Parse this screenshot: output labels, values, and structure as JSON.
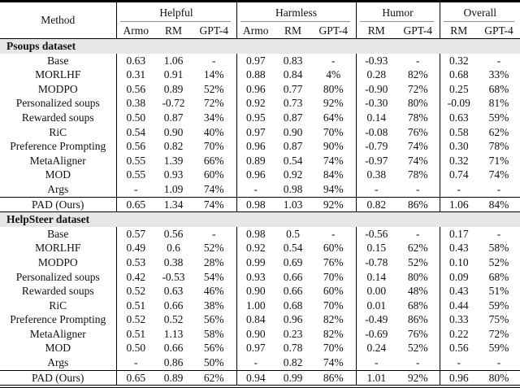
{
  "colors": {
    "band_bg": "#e7e7e7",
    "rule_black": "#000000",
    "cmidrule_gray": "#8f8f8f"
  },
  "table": {
    "method_header": "Method",
    "groups": [
      {
        "label": "Helpful",
        "sub": [
          "Armo",
          "RM",
          "GPT-4"
        ]
      },
      {
        "label": "Harmless",
        "sub": [
          "Armo",
          "RM",
          "GPT-4"
        ]
      },
      {
        "label": "Humor",
        "sub": [
          "RM",
          "GPT-4"
        ]
      },
      {
        "label": "Overall",
        "sub": [
          "RM",
          "GPT-4"
        ]
      }
    ],
    "sections": [
      {
        "title": "Psoups dataset",
        "rows": [
          {
            "method": "Base",
            "values": [
              "0.63",
              "1.06",
              "-",
              "0.97",
              "0.83",
              "-",
              "-0.93",
              "-",
              "0.32",
              "-"
            ],
            "bold": [
              false,
              false,
              false,
              false,
              false,
              false,
              false,
              false,
              false,
              false
            ]
          },
          {
            "method": "MORLHF",
            "values": [
              "0.31",
              "0.91",
              "14%",
              "0.88",
              "0.84",
              "4%",
              "0.28",
              "82%",
              "0.68",
              "33%"
            ],
            "bold": [
              false,
              false,
              false,
              false,
              false,
              false,
              false,
              false,
              false,
              false
            ]
          },
          {
            "method": "MODPO",
            "values": [
              "0.56",
              "0.89",
              "52%",
              "0.96",
              "0.77",
              "80%",
              "-0.90",
              "72%",
              "0.25",
              "68%"
            ],
            "bold": [
              false,
              false,
              false,
              false,
              false,
              false,
              false,
              false,
              false,
              false
            ]
          },
          {
            "method": "Personalized soups",
            "values": [
              "0.38",
              "-0.72",
              "72%",
              "0.92",
              "0.73",
              "92%",
              "-0.30",
              "80%",
              "-0.09",
              "81%"
            ],
            "bold": [
              false,
              false,
              false,
              false,
              false,
              false,
              false,
              false,
              false,
              false
            ]
          },
          {
            "method": "Rewarded soups",
            "values": [
              "0.50",
              "0.87",
              "34%",
              "0.95",
              "0.87",
              "64%",
              "0.14",
              "78%",
              "0.63",
              "59%"
            ],
            "bold": [
              false,
              false,
              false,
              false,
              false,
              false,
              false,
              false,
              false,
              false
            ]
          },
          {
            "method": "RiC",
            "values": [
              "0.54",
              "0.90",
              "40%",
              "0.97",
              "0.90",
              "70%",
              "-0.08",
              "76%",
              "0.58",
              "62%"
            ],
            "bold": [
              false,
              false,
              false,
              false,
              false,
              false,
              false,
              false,
              false,
              false
            ]
          },
          {
            "method": "Preference Prompting",
            "values": [
              "0.56",
              "0.82",
              "70%",
              "0.96",
              "0.87",
              "90%",
              "-0.79",
              "74%",
              "0.30",
              "78%"
            ],
            "bold": [
              false,
              false,
              false,
              false,
              false,
              false,
              false,
              false,
              false,
              false
            ]
          },
          {
            "method": "MetaAligner",
            "values": [
              "0.55",
              "1.39",
              "66%",
              "0.89",
              "0.54",
              "74%",
              "-0.97",
              "74%",
              "0.32",
              "71%"
            ],
            "bold": [
              false,
              true,
              false,
              false,
              false,
              false,
              false,
              false,
              false,
              false
            ]
          },
          {
            "method": "MOD",
            "values": [
              "0.55",
              "0.93",
              "60%",
              "0.96",
              "0.92",
              "84%",
              "0.38",
              "78%",
              "0.74",
              "74%"
            ],
            "bold": [
              false,
              false,
              false,
              false,
              false,
              false,
              false,
              false,
              false,
              false
            ]
          },
          {
            "method": "Args",
            "values": [
              "-",
              "1.09",
              "74%",
              "-",
              "0.98",
              "94%",
              "-",
              "-",
              "-",
              "-"
            ],
            "bold": [
              false,
              false,
              true,
              false,
              false,
              true,
              false,
              false,
              false,
              false
            ]
          }
        ],
        "result_row": {
          "method": "PAD (Ours)",
          "values": [
            "0.65",
            "1.34",
            "74%",
            "0.98",
            "1.03",
            "92%",
            "0.82",
            "86%",
            "1.06",
            "84%"
          ],
          "bold": [
            true,
            false,
            true,
            true,
            true,
            false,
            true,
            true,
            true,
            true
          ]
        }
      },
      {
        "title": "HelpSteer dataset",
        "rows": [
          {
            "method": "Base",
            "values": [
              "0.57",
              "0.56",
              "-",
              "0.98",
              "0.5",
              "-",
              "-0.56",
              "-",
              "0.17",
              "-"
            ],
            "bold": [
              false,
              false,
              false,
              false,
              false,
              false,
              false,
              false,
              false,
              false
            ]
          },
          {
            "method": "MORLHF",
            "values": [
              "0.49",
              "0.6",
              "52%",
              "0.92",
              "0.54",
              "60%",
              "0.15",
              "62%",
              "0.43",
              "58%"
            ],
            "bold": [
              false,
              false,
              false,
              false,
              false,
              false,
              false,
              false,
              false,
              false
            ]
          },
          {
            "method": "MODPO",
            "values": [
              "0.53",
              "0.38",
              "28%",
              "0.99",
              "0.69",
              "76%",
              "-0.78",
              "52%",
              "0.10",
              "52%"
            ],
            "bold": [
              false,
              false,
              false,
              false,
              false,
              false,
              false,
              false,
              false,
              false
            ]
          },
          {
            "method": "Personalized soups",
            "values": [
              "0.42",
              "-0.53",
              "54%",
              "0.93",
              "0.66",
              "70%",
              "0.14",
              "80%",
              "0.09",
              "68%"
            ],
            "bold": [
              false,
              false,
              false,
              false,
              false,
              false,
              false,
              false,
              false,
              false
            ]
          },
          {
            "method": "Rewarded soups",
            "values": [
              "0.52",
              "0.63",
              "46%",
              "0.90",
              "0.66",
              "60%",
              "0.00",
              "48%",
              "0.43",
              "51%"
            ],
            "bold": [
              false,
              false,
              false,
              false,
              false,
              false,
              false,
              false,
              false,
              false
            ]
          },
          {
            "method": "RiC",
            "values": [
              "0.51",
              "0.66",
              "38%",
              "1.00",
              "0.68",
              "70%",
              "0.01",
              "68%",
              "0.44",
              "59%"
            ],
            "bold": [
              false,
              false,
              false,
              true,
              false,
              false,
              false,
              false,
              false,
              false
            ]
          },
          {
            "method": "Preference Prompting",
            "values": [
              "0.52",
              "0.52",
              "56%",
              "0.84",
              "0.96",
              "82%",
              "-0.49",
              "86%",
              "0.33",
              "75%"
            ],
            "bold": [
              false,
              false,
              false,
              false,
              false,
              false,
              false,
              false,
              false,
              false
            ]
          },
          {
            "method": "MetaAligner",
            "values": [
              "0.51",
              "1.13",
              "58%",
              "0.90",
              "0.23",
              "82%",
              "-0.69",
              "76%",
              "0.22",
              "72%"
            ],
            "bold": [
              false,
              false,
              false,
              false,
              false,
              false,
              false,
              false,
              false,
              false
            ]
          },
          {
            "method": "MOD",
            "values": [
              "0.50",
              "0.66",
              "56%",
              "0.97",
              "0.78",
              "70%",
              "0.24",
              "52%",
              "0.56",
              "59%"
            ],
            "bold": [
              false,
              false,
              false,
              false,
              false,
              false,
              false,
              false,
              false,
              false
            ]
          },
          {
            "method": "Args",
            "values": [
              "-",
              "0.86",
              "50%",
              "-",
              "0.82",
              "74%",
              "-",
              "-",
              "-",
              "-"
            ],
            "bold": [
              false,
              false,
              false,
              false,
              false,
              false,
              false,
              false,
              false,
              false
            ]
          }
        ],
        "result_row": {
          "method": "PAD (Ours)",
          "values": [
            "0.65",
            "0.89",
            "62%",
            "0.94",
            "0.99",
            "86%",
            "1.01",
            "92%",
            "0.96",
            "80%"
          ],
          "bold": [
            true,
            true,
            true,
            false,
            true,
            true,
            true,
            true,
            true,
            true
          ]
        }
      }
    ]
  }
}
